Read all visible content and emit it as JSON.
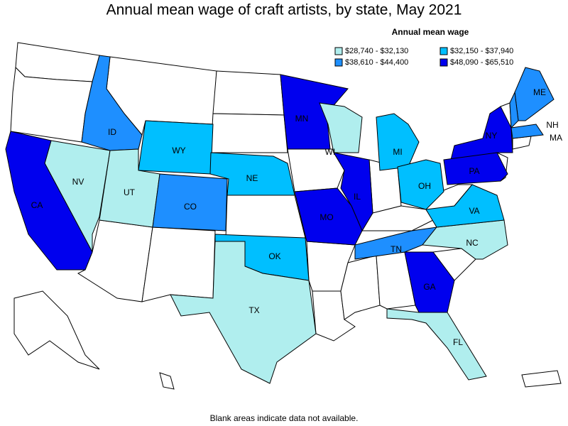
{
  "title": "Annual mean wage of craft artists, by state, May 2021",
  "legend": {
    "title": "Annual mean wage",
    "items": [
      {
        "label": "$28,740 - $32,130",
        "color": "#b0eeee"
      },
      {
        "label": "$32,150 - $37,940",
        "color": "#00bfff"
      },
      {
        "label": "$38,610 - $44,400",
        "color": "#1e8fff"
      },
      {
        "label": "$48,090 - $65,510",
        "color": "#0000ee"
      }
    ]
  },
  "states": [
    {
      "abbr": "ID",
      "class": 2
    },
    {
      "abbr": "WY",
      "class": 1
    },
    {
      "abbr": "NV",
      "class": 0
    },
    {
      "abbr": "UT",
      "class": 0
    },
    {
      "abbr": "CO",
      "class": 2
    },
    {
      "abbr": "NE",
      "class": 1
    },
    {
      "abbr": "CA",
      "class": 3
    },
    {
      "abbr": "MN",
      "class": 3
    },
    {
      "abbr": "WI",
      "class": 0
    },
    {
      "abbr": "MI",
      "class": 1
    },
    {
      "abbr": "NY",
      "class": 3
    },
    {
      "abbr": "PA",
      "class": 3
    },
    {
      "abbr": "OH",
      "class": 1
    },
    {
      "abbr": "IL",
      "class": 3
    },
    {
      "abbr": "MO",
      "class": 3
    },
    {
      "abbr": "OK",
      "class": 1
    },
    {
      "abbr": "TX",
      "class": 0
    },
    {
      "abbr": "TN",
      "class": 2
    },
    {
      "abbr": "NC",
      "class": 0
    },
    {
      "abbr": "VA",
      "class": 1
    },
    {
      "abbr": "GA",
      "class": 3
    },
    {
      "abbr": "FL",
      "class": 0
    },
    {
      "abbr": "ME",
      "class": 2
    },
    {
      "abbr": "NH",
      "class": 2
    },
    {
      "abbr": "MA",
      "class": 2
    }
  ],
  "footnote": "Blank areas indicate data not available."
}
